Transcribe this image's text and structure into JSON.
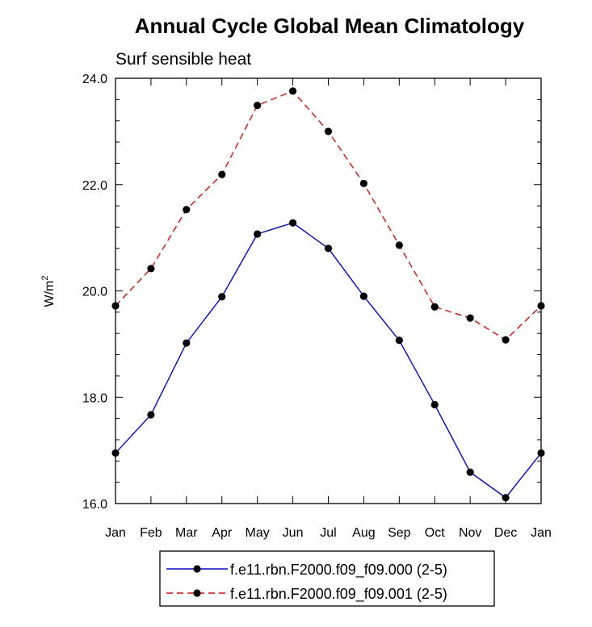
{
  "chart_data": {
    "type": "line",
    "title": "Annual Cycle Global Mean Climatology",
    "subtitle": "Surf sensible heat",
    "ylabel_base": "W/m",
    "ylabel_sup": "2",
    "ylim": [
      16.0,
      24.0
    ],
    "yticks": [
      "16.0",
      "18.0",
      "20.0",
      "22.0",
      "24.0"
    ],
    "categories": [
      "Jan",
      "Feb",
      "Mar",
      "Apr",
      "May",
      "Jun",
      "Jul",
      "Aug",
      "Sep",
      "Oct",
      "Nov",
      "Dec",
      "Jan"
    ],
    "series": [
      {
        "name": "f.e11.rbn.F2000.f09_f09.000 (2-5)",
        "color": "#0000ff",
        "dash": "solid",
        "values": [
          16.95,
          17.67,
          19.02,
          19.89,
          21.07,
          21.28,
          20.8,
          19.9,
          19.07,
          17.86,
          16.59,
          16.11,
          16.95
        ]
      },
      {
        "name": "f.e11.rbn.F2000.f09_f09.001 (2-5)",
        "color": "#ff0000",
        "dash": "dashed",
        "values": [
          19.72,
          20.42,
          21.53,
          22.19,
          23.49,
          23.76,
          23.0,
          22.02,
          20.86,
          19.7,
          19.49,
          19.08,
          19.72
        ]
      }
    ],
    "marker_color": "#000000"
  }
}
